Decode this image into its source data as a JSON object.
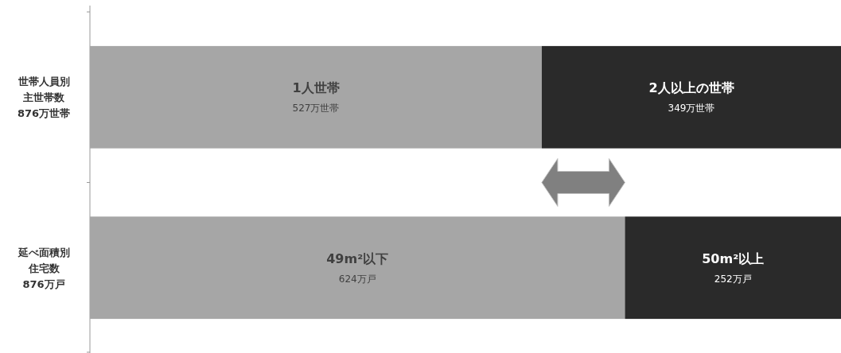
{
  "chart_data": {
    "type": "bar",
    "orientation": "horizontal",
    "stacked": true,
    "tick_labels": "y",
    "categories": [
      "世帯人員別主世帯数",
      "延べ面積別住宅数"
    ],
    "totals": [
      "876万世帯",
      "876万戸"
    ],
    "xlim": [
      0,
      876
    ],
    "series": [
      {
        "color": "#a6a6a6",
        "values": [
          527,
          624
        ],
        "value_labels": [
          "**1人世帯**\n527万世帯",
          "**49m²以下**\n624万戸"
        ]
      },
      {
        "color": "#2a2a2a",
        "values": [
          349,
          252
        ],
        "value_labels": [
          "**2人以上の世帯**\n349万世帯",
          "**50m²以上**\n252万戸"
        ]
      }
    ]
  }
}
